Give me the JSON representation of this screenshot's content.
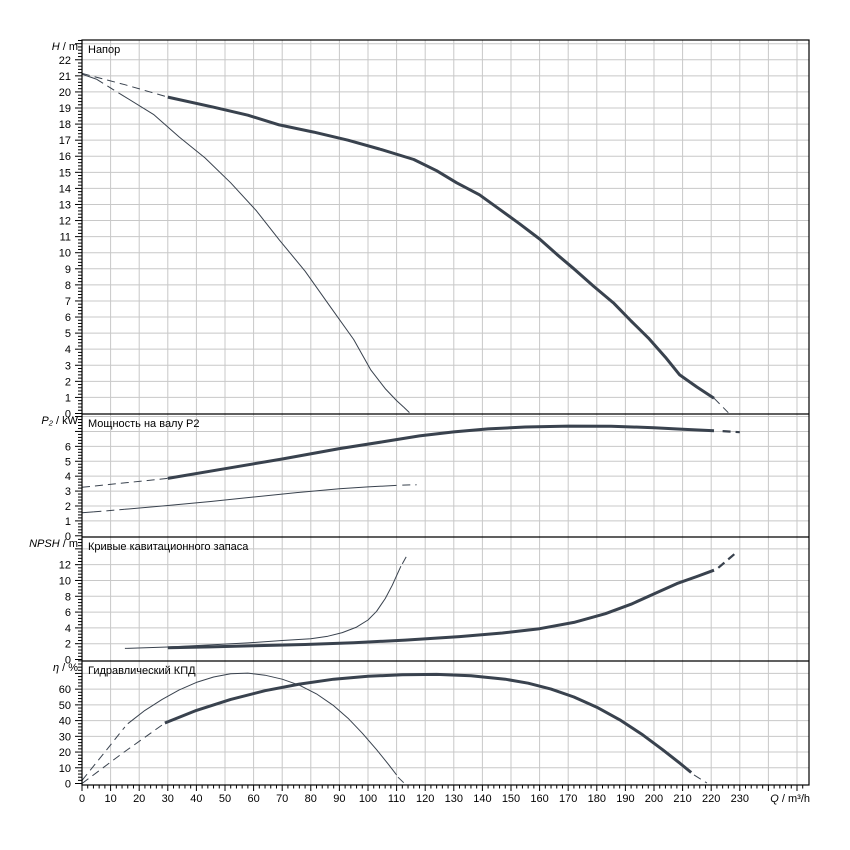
{
  "colors": {
    "curve": "#39424e",
    "grid": "#c8c8c8",
    "border": "#000000",
    "text": "#000000",
    "background": "#ffffff"
  },
  "x_axis": {
    "label_var": "Q",
    "label_unit": " / m³/h",
    "min": 0,
    "plot_max": 254.2,
    "major_step": 10,
    "minor_step": 2,
    "last_labeled_tick": 230
  },
  "chart_data": [
    {
      "type": "line",
      "title": "Напор",
      "ylabel_var": "H",
      "ylabel_unit": " / m",
      "y_tick_step": 1,
      "y_minor_step": 0.2,
      "y_labeled_max": 22,
      "y_plot_max": 23.23,
      "grid": true,
      "series": [
        {
          "name": "head-curve-max-impeller",
          "width": 3,
          "segments": [
            {
              "style": "dashed",
              "w": 1,
              "pts": [
                [
                  0,
                  21.15
                ],
                [
                  15,
                  20.45
                ],
                [
                  30,
                  19.68
                ]
              ]
            },
            {
              "style": "solid",
              "pts": [
                [
                  30,
                  19.68
                ],
                [
                  46,
                  19.05
                ],
                [
                  58,
                  18.55
                ],
                [
                  69,
                  17.95
                ],
                [
                  81,
                  17.5
                ],
                [
                  93,
                  17.0
                ],
                [
                  104,
                  16.45
                ],
                [
                  116,
                  15.8
                ],
                [
                  124,
                  15.1
                ],
                [
                  131,
                  14.35
                ],
                [
                  139,
                  13.6
                ],
                [
                  146,
                  12.7
                ],
                [
                  153,
                  11.8
                ],
                [
                  160,
                  10.85
                ],
                [
                  166,
                  9.9
                ],
                [
                  172,
                  9.0
                ],
                [
                  179,
                  7.9
                ],
                [
                  186,
                  6.85
                ],
                [
                  192,
                  5.75
                ],
                [
                  198,
                  4.7
                ],
                [
                  204,
                  3.5
                ],
                [
                  209,
                  2.4
                ],
                [
                  215,
                  1.65
                ],
                [
                  221,
                  0.95
                ]
              ]
            },
            {
              "style": "dashed",
              "w": 1,
              "pts": [
                [
                  221,
                  0.95
                ],
                [
                  226,
                  0.05
                ]
              ]
            }
          ]
        },
        {
          "name": "head-curve-min-impeller",
          "width": 1,
          "segments": [
            {
              "style": "solid",
              "pts": [
                [
                  0,
                  21.1
                ],
                [
                  5,
                  20.8
                ]
              ]
            },
            {
              "style": "dashed",
              "pts": [
                [
                  5,
                  20.8
                ],
                [
                  15,
                  19.7
                ]
              ]
            },
            {
              "style": "solid",
              "pts": [
                [
                  15,
                  19.7
                ],
                [
                  25,
                  18.6
                ],
                [
                  34,
                  17.2
                ],
                [
                  43,
                  15.9
                ],
                [
                  52,
                  14.35
                ],
                [
                  61,
                  12.6
                ],
                [
                  69,
                  10.8
                ],
                [
                  78,
                  8.85
                ],
                [
                  87,
                  6.6
                ],
                [
                  95,
                  4.6
                ],
                [
                  101,
                  2.7
                ],
                [
                  106,
                  1.55
                ],
                [
                  110,
                  0.8
                ],
                [
                  112.5,
                  0.4
                ]
              ]
            },
            {
              "style": "dashed",
              "pts": [
                [
                  112.5,
                  0.4
                ],
                [
                  114.5,
                  0.05
                ]
              ]
            }
          ]
        }
      ]
    },
    {
      "type": "line",
      "title": "Мощность на валу P2",
      "ylabel_var": "P₂",
      "ylabel_unit": " / kW",
      "y_tick_step": 1,
      "y_minor_step": 0.2,
      "y_labeled_max": 6,
      "y_plot_max": 8.17,
      "grid": true,
      "series": [
        {
          "name": "power-curve-max-impeller",
          "width": 3,
          "segments": [
            {
              "style": "dashed",
              "w": 1,
              "pts": [
                [
                  0,
                  3.25
                ],
                [
                  30,
                  3.85
                ]
              ]
            },
            {
              "style": "solid",
              "pts": [
                [
                  30,
                  3.85
                ],
                [
                  50,
                  4.5
                ],
                [
                  70,
                  5.15
                ],
                [
                  90,
                  5.85
                ],
                [
                  105,
                  6.3
                ],
                [
                  118,
                  6.7
                ],
                [
                  130,
                  6.97
                ],
                [
                  142,
                  7.17
                ],
                [
                  155,
                  7.3
                ],
                [
                  170,
                  7.36
                ],
                [
                  185,
                  7.35
                ],
                [
                  200,
                  7.25
                ],
                [
                  210,
                  7.15
                ],
                [
                  221,
                  7.05
                ]
              ]
            },
            {
              "style": "dashed",
              "w": 2.2,
              "pts": [
                [
                  224,
                  7.02
                ],
                [
                  230,
                  6.95
                ]
              ]
            }
          ]
        },
        {
          "name": "power-curve-min-impeller",
          "width": 1,
          "segments": [
            {
              "style": "solid",
              "pts": [
                [
                  0,
                  1.55
                ],
                [
                  4,
                  1.6
                ]
              ]
            },
            {
              "style": "dashed",
              "pts": [
                [
                  4,
                  1.6
                ],
                [
                  15,
                  1.78
                ]
              ]
            },
            {
              "style": "solid",
              "pts": [
                [
                  15,
                  1.78
                ],
                [
                  30,
                  2.03
                ],
                [
                  45,
                  2.3
                ],
                [
                  60,
                  2.6
                ],
                [
                  75,
                  2.9
                ],
                [
                  90,
                  3.15
                ],
                [
                  100,
                  3.28
                ],
                [
                  110,
                  3.38
                ]
              ]
            },
            {
              "style": "dashed",
              "pts": [
                [
                  112,
                  3.4
                ],
                [
                  117,
                  3.42
                ]
              ]
            }
          ]
        }
      ]
    },
    {
      "type": "line",
      "title": "Кривые кавитационного запаса",
      "ylabel_var": "NPSH",
      "ylabel_unit": " / m",
      "y_tick_step": 2,
      "y_minor_step": 0.4,
      "y_labeled_max": 12,
      "y_plot_max": 15.5,
      "grid": true,
      "series": [
        {
          "name": "npsh-curve-max-impeller",
          "width": 3,
          "segments": [
            {
              "style": "solid",
              "pts": [
                [
                  30,
                  1.48
                ],
                [
                  45,
                  1.6
                ],
                [
                  60,
                  1.73
                ],
                [
                  78,
                  1.9
                ],
                [
                  95,
                  2.12
                ],
                [
                  113,
                  2.45
                ],
                [
                  132,
                  2.9
                ],
                [
                  147,
                  3.35
                ],
                [
                  160,
                  3.9
                ],
                [
                  172,
                  4.7
                ],
                [
                  183,
                  5.8
                ],
                [
                  192,
                  7.0
                ],
                [
                  200,
                  8.3
                ],
                [
                  208,
                  9.6
                ],
                [
                  215,
                  10.5
                ],
                [
                  221,
                  11.3
                ]
              ]
            },
            {
              "style": "dashed",
              "w": 2.2,
              "pts": [
                [
                  222.5,
                  11.6
                ],
                [
                  229,
                  13.6
                ]
              ]
            }
          ]
        },
        {
          "name": "npsh-curve-min-impeller",
          "width": 1,
          "segments": [
            {
              "style": "solid",
              "pts": [
                [
                  15,
                  1.4
                ],
                [
                  30,
                  1.58
                ],
                [
                  45,
                  1.85
                ],
                [
                  58,
                  2.1
                ],
                [
                  70,
                  2.4
                ],
                [
                  80,
                  2.62
                ],
                [
                  86,
                  2.95
                ],
                [
                  91,
                  3.4
                ],
                [
                  96,
                  4.1
                ],
                [
                  100,
                  5.0
                ],
                [
                  103,
                  6.1
                ],
                [
                  106,
                  7.7
                ],
                [
                  108.5,
                  9.4
                ],
                [
                  110.5,
                  11.0
                ],
                [
                  111.5,
                  11.8
                ]
              ]
            },
            {
              "style": "dashed",
              "pts": [
                [
                  112,
                  12.1
                ],
                [
                  114,
                  13.4
                ]
              ]
            }
          ]
        }
      ]
    },
    {
      "type": "line",
      "title": "Гидравлический КПД",
      "ylabel_var": "η",
      "ylabel_unit": " / %",
      "y_tick_step": 10,
      "y_minor_step": 2,
      "y_labeled_max": 60,
      "y_plot_max": 77.9,
      "grid": true,
      "series": [
        {
          "name": "efficiency-curve-max-impeller",
          "width": 3,
          "segments": [
            {
              "style": "dashed",
              "w": 1,
              "pts": [
                [
                  0,
                  0
                ],
                [
                  14,
                  19
                ],
                [
                  29,
                  38.5
                ]
              ]
            },
            {
              "style": "solid",
              "pts": [
                [
                  29,
                  38.5
                ],
                [
                  40,
                  46.5
                ],
                [
                  52,
                  53.5
                ],
                [
                  64,
                  59
                ],
                [
                  76,
                  63.2
                ],
                [
                  88,
                  66.3
                ],
                [
                  100,
                  68.2
                ],
                [
                  112,
                  69.2
                ],
                [
                  124,
                  69.4
                ],
                [
                  136,
                  68.5
                ],
                [
                  148,
                  66.3
                ],
                [
                  156,
                  63.8
                ],
                [
                  164,
                  60
                ],
                [
                  172,
                  55
                ],
                [
                  180,
                  48.5
                ],
                [
                  188,
                  40.5
                ],
                [
                  196,
                  31
                ],
                [
                  203,
                  21.5
                ],
                [
                  209,
                  13
                ],
                [
                  213,
                  7
                ]
              ]
            },
            {
              "style": "dashed",
              "w": 1,
              "pts": [
                [
                  214,
                  5.5
                ],
                [
                  218.5,
                  0.3
                ]
              ]
            }
          ]
        },
        {
          "name": "efficiency-curve-min-impeller",
          "width": 1,
          "segments": [
            {
              "style": "dashed",
              "pts": [
                [
                  0,
                  2
                ],
                [
                  8,
                  20
                ],
                [
                  15,
                  36
                ]
              ]
            },
            {
              "style": "solid",
              "pts": [
                [
                  16,
                  38
                ],
                [
                  22,
                  46.5
                ],
                [
                  28,
                  53.5
                ],
                [
                  34,
                  59.5
                ],
                [
                  40,
                  64.3
                ],
                [
                  46,
                  67.7
                ],
                [
                  52,
                  69.8
                ],
                [
                  58,
                  70.2
                ],
                [
                  64,
                  68.9
                ],
                [
                  70,
                  66.3
                ],
                [
                  76,
                  62.5
                ],
                [
                  82,
                  57
                ],
                [
                  88,
                  49.5
                ],
                [
                  93,
                  41.5
                ],
                [
                  98,
                  32
                ],
                [
                  103,
                  21.5
                ],
                [
                  107,
                  12.5
                ],
                [
                  110,
                  5.5
                ]
              ]
            },
            {
              "style": "dashed",
              "pts": [
                [
                  110.5,
                  4
                ],
                [
                  112.5,
                  0.5
                ]
              ]
            }
          ]
        }
      ]
    }
  ]
}
